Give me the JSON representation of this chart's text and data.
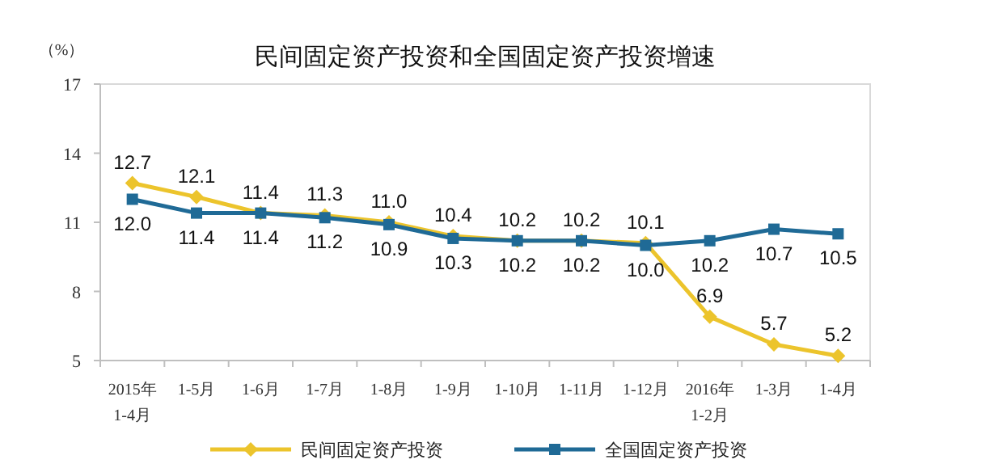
{
  "chart_data": {
    "type": "line",
    "title": "民间固定资产投资和全国固定资产投资增速",
    "ylabel": "（%）",
    "categories": [
      "2015年\n1-4月",
      "1-5月",
      "1-6月",
      "1-7月",
      "1-8月",
      "1-9月",
      "1-10月",
      "1-11月",
      "1-12月",
      "2016年\n1-2月",
      "1-3月",
      "1-4月"
    ],
    "series": [
      {
        "name": "民间固定资产投资",
        "color": "#ecc42c",
        "marker": "diamond",
        "values": [
          12.7,
          12.1,
          11.4,
          11.3,
          11.0,
          10.4,
          10.2,
          10.2,
          10.1,
          6.9,
          5.7,
          5.2
        ],
        "value_labels": [
          "12.7",
          "12.1",
          "11.4",
          "11.3",
          "11.0",
          "10.4",
          "10.2",
          "10.2",
          "10.1",
          "6.9",
          "5.7",
          "5.2"
        ]
      },
      {
        "name": "全国固定资产投资",
        "color": "#1f6a96",
        "marker": "square",
        "values": [
          12.0,
          11.4,
          11.4,
          11.2,
          10.9,
          10.3,
          10.2,
          10.2,
          10.0,
          10.2,
          10.7,
          10.5
        ],
        "value_labels": [
          "12.0",
          "11.4",
          "11.4",
          "11.2",
          "10.9",
          "10.3",
          "10.2",
          "10.2",
          "10.0",
          "10.2",
          "10.7",
          "10.5"
        ]
      }
    ],
    "ylim": [
      5,
      17
    ],
    "yticks": [
      5,
      8,
      11,
      14,
      17
    ],
    "grid": false,
    "legend": "bottom",
    "line_style": "solid"
  }
}
